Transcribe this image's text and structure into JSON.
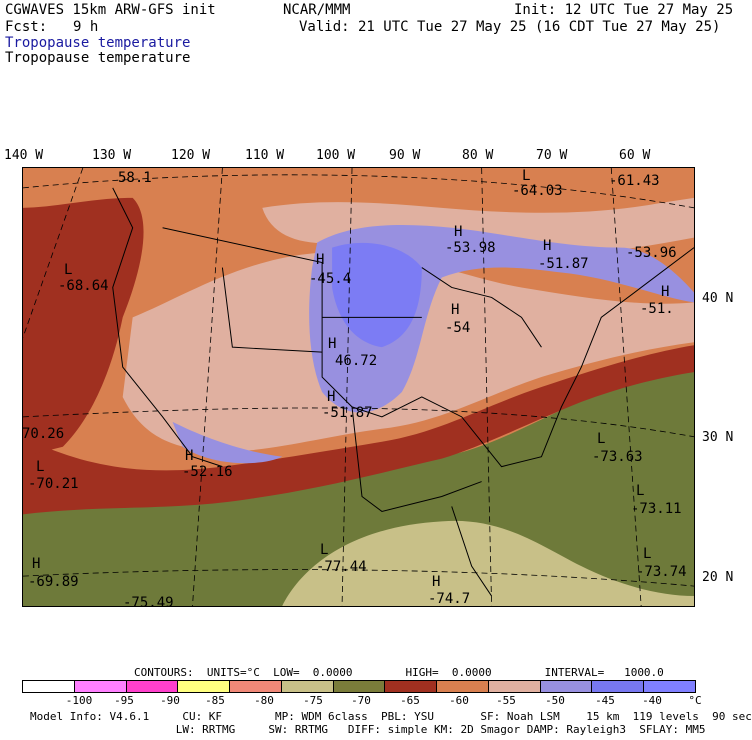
{
  "header": {
    "model": "CGWAVES 15km ARW-GFS init",
    "org": "NCAR/MMM",
    "init": "Init: 12 UTC Tue 27 May 25",
    "fcst_label": "Fcst:",
    "fcst_value": "9 h",
    "valid": "Valid: 21 UTC Tue 27 May 25 (16 CDT Tue 27 May 25)",
    "title1": "Tropopause temperature",
    "title2": "Tropopause temperature"
  },
  "lon_labels": [
    "140 W",
    "130 W",
    "120 W",
    "110 W",
    "100 W",
    "90 W",
    "80 W",
    "70 W",
    "60 W"
  ],
  "lat_labels": [
    "40 N",
    "30 N",
    "20 N"
  ],
  "map_labels": [
    {
      "m": "",
      "v": "58.1"
    },
    {
      "m": "L",
      "v": "-64.03"
    },
    {
      "m": "",
      "v": "-61.43"
    },
    {
      "m": "L",
      "v": "-68.64"
    },
    {
      "m": "H",
      "v": "-45.4"
    },
    {
      "m": "H",
      "v": "-53.98"
    },
    {
      "m": "H",
      "v": "-51.87"
    },
    {
      "m": "",
      "v": "-53.96"
    },
    {
      "m": "H",
      "v": "-51."
    },
    {
      "m": "H",
      "v": "-54"
    },
    {
      "m": "H",
      "v": "46.72"
    },
    {
      "m": "H",
      "v": "-51.87"
    },
    {
      "m": "",
      "v": "70.26"
    },
    {
      "m": "L",
      "v": "-70.21"
    },
    {
      "m": "H",
      "v": "-52.16"
    },
    {
      "m": "L",
      "v": "-73.63"
    },
    {
      "m": "L",
      "v": "-73.11"
    },
    {
      "m": "H",
      "v": "-69.89"
    },
    {
      "m": "L",
      "v": "-77.44"
    },
    {
      "m": "L",
      "v": "-73.74"
    },
    {
      "m": "H",
      "v": "-74.7"
    },
    {
      "m": "",
      "v": "-75.49"
    }
  ],
  "contours": {
    "text": "CONTOURS:  UNITS=°C  LOW=  0.0000        HIGH=  0.0000        INTERVAL=   1000.0"
  },
  "legend": {
    "colors": [
      "#ffffff",
      "#ff80ff",
      "#ff40cc",
      "#ffff80",
      "#f08878",
      "#c8c088",
      "#7a7c3a",
      "#a03020",
      "#d88050",
      "#e0b0a0",
      "#9890e0",
      "#7878f0",
      "#8080ff"
    ],
    "ticks": [
      "-100",
      "-95",
      "-90",
      "-85",
      "-80",
      "-75",
      "-70",
      "-65",
      "-60",
      "-55",
      "-50",
      "-45",
      "-40",
      "°C"
    ]
  },
  "footer": {
    "line1": "Model Info: V4.6.1     CU: KF        MP: WDM 6class  PBL: YSU       SF: Noah LSM    15 km  119 levels  90 sec",
    "line2": "                      LW: RRTMG     SW: RRTMG   DIFF: simple KM: 2D Smagor DAMP: Rayleigh3  SFLAY: MM5"
  },
  "colors": {
    "coldest": "#6e7a3a",
    "cold": "#a03020",
    "mid": "#d88050",
    "warm": "#e0b0a0",
    "warmer": "#9890e0",
    "warmest": "#7c7cf4",
    "tropic": "#c8c088",
    "label_blue": "#1a1aa0"
  }
}
